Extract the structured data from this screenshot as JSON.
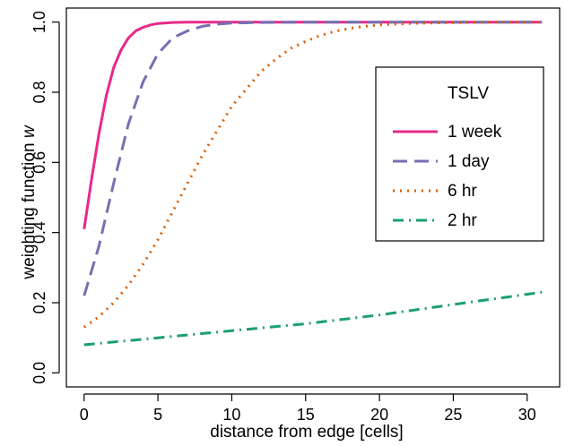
{
  "chart_data": {
    "type": "line",
    "xlabel": "distance from edge [cells]",
    "ylabel_prefix": "weighting function ",
    "ylabel_symbol": "w",
    "xlim": [
      -1.2,
      32.2
    ],
    "ylim": [
      -0.04,
      1.04
    ],
    "xticks": [
      0,
      5,
      10,
      15,
      20,
      25,
      30
    ],
    "yticks": [
      0.0,
      0.2,
      0.4,
      0.6,
      0.8,
      1.0
    ],
    "xtick_labels": [
      "0",
      "5",
      "10",
      "15",
      "20",
      "25",
      "30"
    ],
    "ytick_labels": [
      "0.0",
      "0.2",
      "0.4",
      "0.6",
      "0.8",
      "1.0"
    ],
    "grid": false,
    "legend": {
      "title": "TSLV",
      "placement": "right-middle"
    },
    "series": [
      {
        "name": "1 week",
        "color": "#e7298a",
        "dash": "solid",
        "x": [
          0,
          0.5,
          1,
          1.5,
          2,
          2.5,
          3,
          3.5,
          4,
          4.5,
          5,
          6,
          7,
          8,
          10,
          15,
          20,
          25,
          31
        ],
        "y": [
          0.41,
          0.55,
          0.68,
          0.79,
          0.87,
          0.92,
          0.955,
          0.975,
          0.985,
          0.992,
          0.996,
          0.999,
          1.0,
          1.0,
          1.0,
          1.0,
          1.0,
          1.0,
          1.0
        ]
      },
      {
        "name": "1 day",
        "color": "#7570b3",
        "dash": "dashed",
        "x": [
          0,
          1,
          2,
          3,
          4,
          5,
          6,
          7,
          8,
          9,
          10,
          12,
          15,
          20,
          25,
          31
        ],
        "y": [
          0.22,
          0.36,
          0.54,
          0.71,
          0.83,
          0.91,
          0.955,
          0.975,
          0.988,
          0.994,
          0.997,
          0.999,
          1.0,
          1.0,
          1.0,
          1.0
        ]
      },
      {
        "name": "6 hr",
        "color": "#d95f02",
        "dash": "dotted",
        "x": [
          0,
          1,
          2,
          3,
          4,
          5,
          6,
          7,
          8,
          9,
          10,
          11,
          12,
          13,
          14,
          15,
          16,
          17,
          18,
          19,
          20,
          22,
          24,
          26,
          28,
          31
        ],
        "y": [
          0.13,
          0.16,
          0.2,
          0.25,
          0.31,
          0.38,
          0.46,
          0.54,
          0.62,
          0.69,
          0.76,
          0.81,
          0.86,
          0.895,
          0.925,
          0.945,
          0.962,
          0.974,
          0.982,
          0.988,
          0.992,
          0.996,
          0.998,
          0.999,
          1.0,
          1.0
        ]
      },
      {
        "name": "2 hr",
        "color": "#1b9e77",
        "dash": "dashdot",
        "x": [
          0,
          5,
          10,
          15,
          20,
          25,
          31
        ],
        "y": [
          0.08,
          0.1,
          0.12,
          0.14,
          0.165,
          0.195,
          0.23
        ]
      }
    ]
  }
}
